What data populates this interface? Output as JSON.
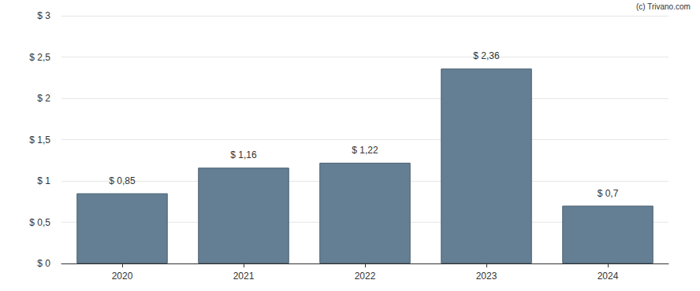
{
  "chart_data": {
    "type": "bar",
    "annotation": "(c) Trivano.com",
    "categories": [
      "2020",
      "2021",
      "2022",
      "2023",
      "2024"
    ],
    "values": [
      0.85,
      1.16,
      1.22,
      2.36,
      0.7
    ],
    "value_labels": [
      "$ 0,85",
      "$ 1,16",
      "$ 1,22",
      "$ 2,36",
      "$ 0,7"
    ],
    "data_labels": true,
    "color": "#647f94",
    "ylim": [
      0,
      3
    ],
    "yticks": [
      {
        "value": 0,
        "label": "$ 0"
      },
      {
        "value": 0.5,
        "label": "$ 0,5"
      },
      {
        "value": 1,
        "label": "$ 1"
      },
      {
        "value": 1.5,
        "label": "$ 1,5"
      },
      {
        "value": 2,
        "label": "$ 2"
      },
      {
        "value": 2.5,
        "label": "$ 2,5"
      },
      {
        "value": 3,
        "label": "$ 3"
      }
    ],
    "grid": true
  }
}
